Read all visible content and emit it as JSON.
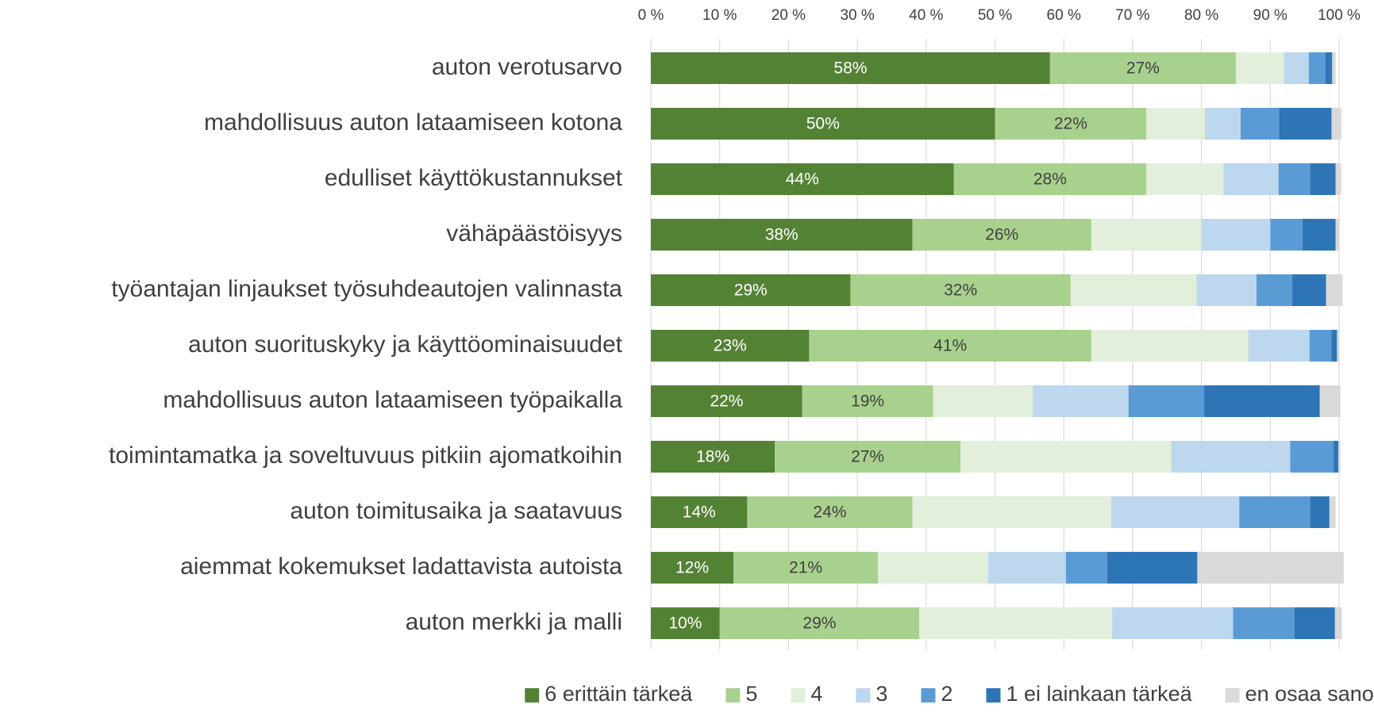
{
  "chart_data": {
    "type": "stacked-barh",
    "categories": [
      "auton verotusarvo",
      "mahdollisuus auton lataamiseen kotona",
      "edulliset käyttökustannukset",
      "vähäpäästöisyys",
      "työantajan linjaukset työsuhdeautojen valinnasta",
      "auton suorituskyky ja käyttöominaisuudet",
      "mahdollisuus auton lataamiseen työpaikalla",
      "toimintamatka ja soveltuvuus pitkiin ajomatkoihin",
      "auton toimitusaika ja saatavuus",
      "aiemmat kokemukset ladattavista autoista",
      "auton merkki ja malli"
    ],
    "series": [
      {
        "name": "6 erittäin tärkeä",
        "color": "#548235",
        "values": [
          58,
          50,
          44,
          38,
          29,
          23,
          22,
          18,
          14,
          12,
          10
        ],
        "value_labels": [
          "58%",
          "50%",
          "44%",
          "38%",
          "29%",
          "23%",
          "22%",
          "18%",
          "14%",
          "12%",
          "10%"
        ]
      },
      {
        "name": "5",
        "color": "#a9d18e",
        "values": [
          27,
          22,
          28,
          26,
          32,
          41,
          19,
          27,
          24,
          21,
          29
        ],
        "value_labels": [
          "27%",
          "22%",
          "28%",
          "26%",
          "32%",
          "41%",
          "19%",
          "27%",
          "24%",
          "21%",
          "29%"
        ]
      },
      {
        "name": "4",
        "color": "#e2efda",
        "values": [
          7,
          8.5,
          11.2,
          16,
          18.3,
          22.8,
          14.5,
          30.6,
          28.9,
          16,
          28
        ]
      },
      {
        "name": "3",
        "color": "#bdd7ee",
        "values": [
          3.6,
          5.2,
          8,
          10,
          8.7,
          8.9,
          13.9,
          17.3,
          18.6,
          11.3,
          17.6
        ]
      },
      {
        "name": "2",
        "color": "#5b9bd5",
        "values": [
          2.4,
          5.6,
          4.6,
          4.7,
          5.2,
          3.2,
          11,
          6.3,
          10.3,
          6,
          8.9
        ]
      },
      {
        "name": "1 ei lainkaan tärkeä",
        "color": "#2e75b6",
        "values": [
          1,
          7.6,
          3.7,
          4.8,
          4.9,
          0.8,
          16.8,
          0.7,
          2.8,
          13.1,
          5.9
        ]
      },
      {
        "name": "en osaa sanoa",
        "color": "#d9d9d9",
        "values": [
          0.5,
          1.4,
          0.8,
          0.5,
          2.4,
          0.3,
          3,
          0.3,
          0.9,
          21.3,
          1
        ]
      }
    ],
    "xlim": [
      0,
      100
    ],
    "xticks": [
      {
        "value": 0,
        "label": "0 %"
      },
      {
        "value": 10,
        "label": "10 %"
      },
      {
        "value": 20,
        "label": "20 %"
      },
      {
        "value": 30,
        "label": "30 %"
      },
      {
        "value": 40,
        "label": "40 %"
      },
      {
        "value": 50,
        "label": "50 %"
      },
      {
        "value": 60,
        "label": "60 %"
      },
      {
        "value": 70,
        "label": "70 %"
      },
      {
        "value": 80,
        "label": "80 %"
      },
      {
        "value": 90,
        "label": "90 %"
      },
      {
        "value": 100,
        "label": "100 %"
      }
    ],
    "grid": true,
    "legend": "bottom"
  }
}
